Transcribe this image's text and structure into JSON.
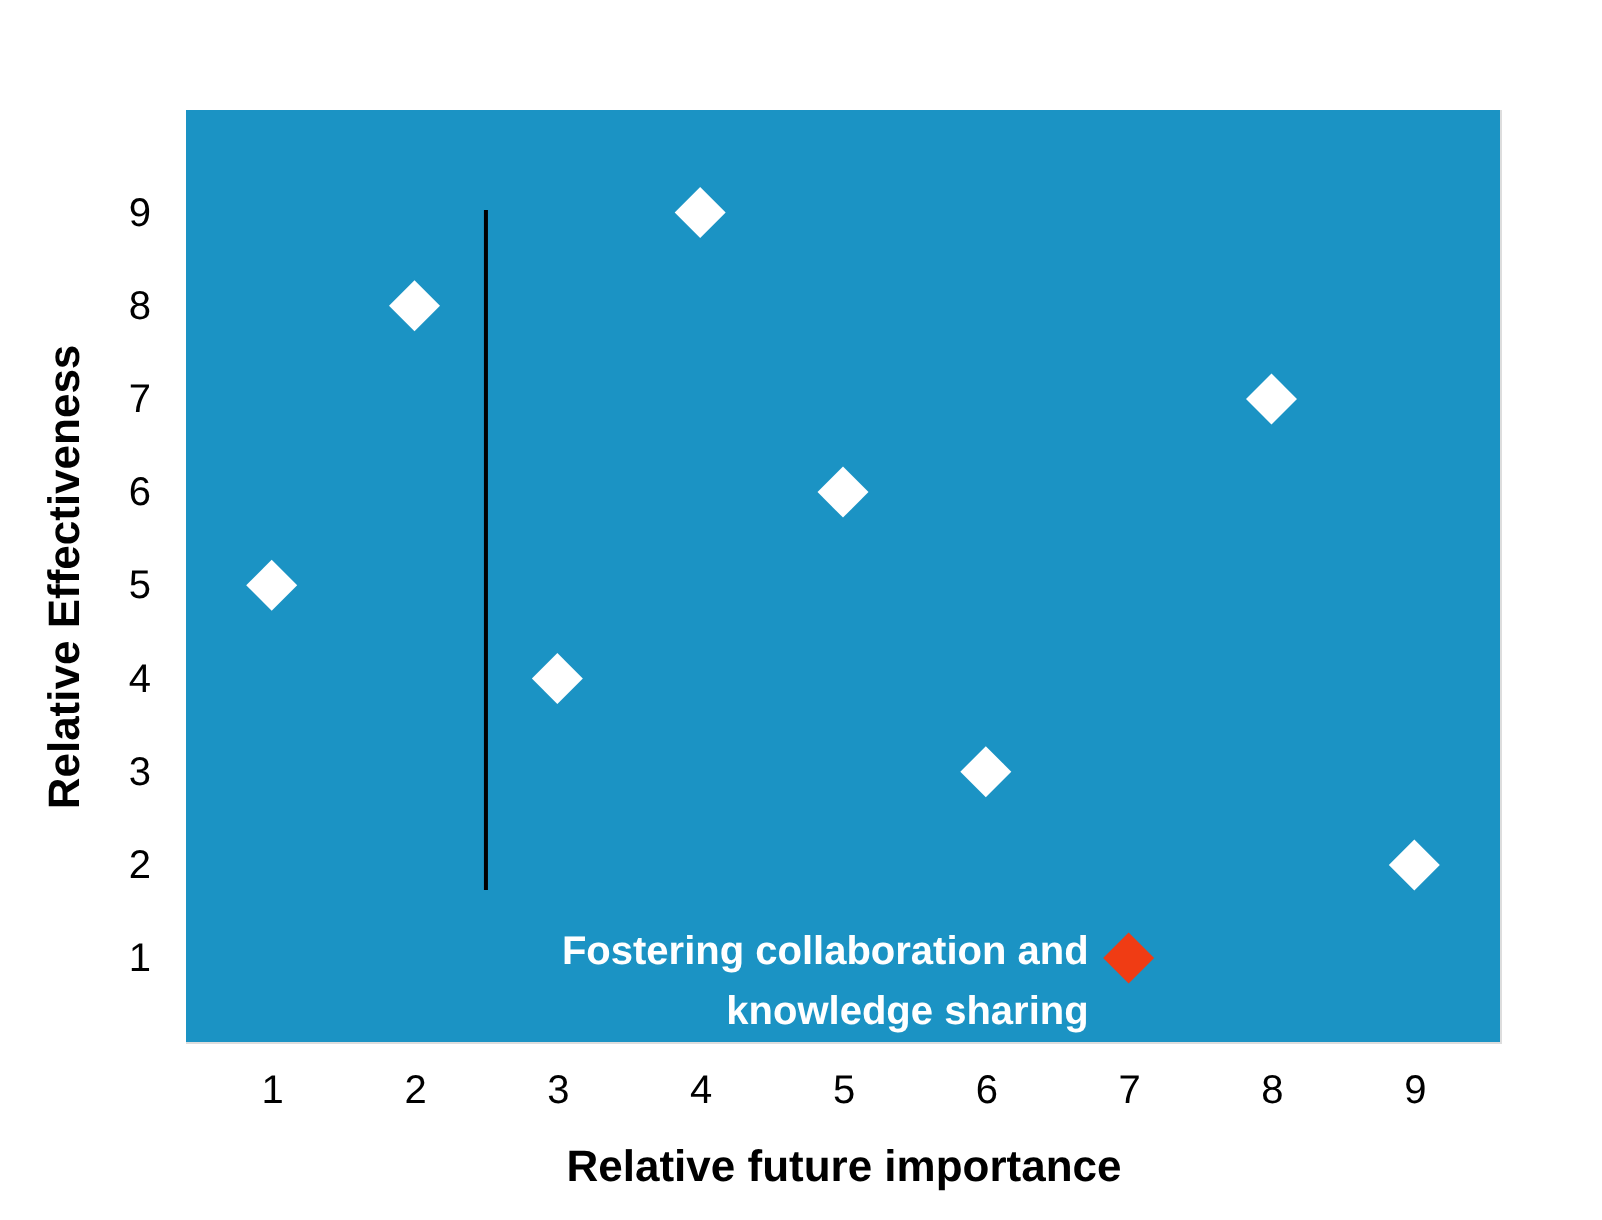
{
  "chart_data": {
    "type": "scatter",
    "xlabel": "Relative future importance",
    "ylabel": "Relative Effectiveness",
    "x": [
      1,
      2,
      3,
      4,
      5,
      6,
      7,
      8,
      9
    ],
    "values": [
      5,
      8,
      4,
      9,
      6,
      3,
      1,
      7,
      2
    ],
    "colors": [
      "#ffffff",
      "#ffffff",
      "#ffffff",
      "#ffffff",
      "#ffffff",
      "#ffffff",
      "#f03c14",
      "#ffffff",
      "#ffffff"
    ],
    "xlim": [
      0.4,
      9.6
    ],
    "ylim": [
      0.1,
      10.1
    ],
    "xticks": [
      1,
      2,
      3,
      4,
      5,
      6,
      7,
      8,
      9
    ],
    "yticks": [
      1,
      2,
      3,
      4,
      5,
      6,
      7,
      8,
      9
    ],
    "ref_lines": [
      {
        "axis": "x",
        "value": 2.5,
        "color": "#000000"
      }
    ],
    "annotations": [
      {
        "text": "Fostering collaboration and knowledge sharing",
        "x": 7,
        "y": 1
      }
    ],
    "marker": "diamond",
    "legend": false
  }
}
